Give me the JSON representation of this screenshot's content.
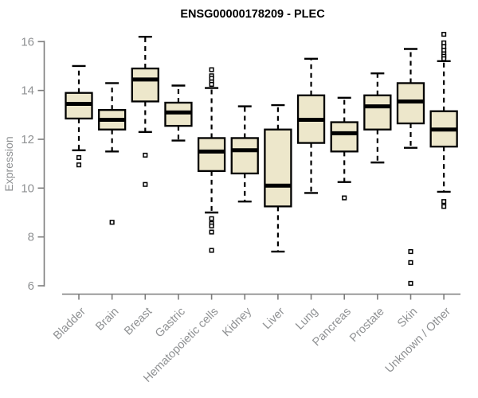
{
  "chart_data": {
    "type": "boxplot",
    "title": "ENSG00000178209 - PLEC",
    "xlabel": "",
    "ylabel": "Expression",
    "ylim": [
      6,
      16.4
    ],
    "yticks": [
      6,
      8,
      10,
      12,
      14,
      16
    ],
    "grid": false,
    "legend_position": "none",
    "categories": [
      "Bladder",
      "Brain",
      "Breast",
      "Gastric",
      "Hematopoietic cells",
      "Kidney",
      "Liver",
      "Lung",
      "Pancreas",
      "Prostate",
      "Skin",
      "Unknown / Other"
    ],
    "series": [
      {
        "name": "Bladder",
        "whislo": 11.55,
        "q1": 12.85,
        "med": 13.45,
        "q3": 13.9,
        "whishi": 15.0,
        "outliers": [
          11.25,
          10.95
        ]
      },
      {
        "name": "Brain",
        "whislo": 11.5,
        "q1": 12.4,
        "med": 12.8,
        "q3": 13.2,
        "whishi": 14.3,
        "outliers": [
          8.6
        ]
      },
      {
        "name": "Breast",
        "whislo": 12.3,
        "q1": 13.55,
        "med": 14.45,
        "q3": 14.9,
        "whishi": 16.2,
        "outliers": [
          11.35,
          10.15
        ]
      },
      {
        "name": "Gastric",
        "whislo": 11.95,
        "q1": 12.55,
        "med": 13.1,
        "q3": 13.5,
        "whishi": 14.2,
        "outliers": []
      },
      {
        "name": "Hematopoietic cells",
        "whislo": 9.0,
        "q1": 10.7,
        "med": 11.5,
        "q3": 12.05,
        "whishi": 14.1,
        "outliers": [
          14.85,
          14.6,
          14.5,
          14.35,
          14.25,
          8.75,
          8.55,
          8.45,
          8.2,
          7.45
        ]
      },
      {
        "name": "Kidney",
        "whislo": 9.45,
        "q1": 10.6,
        "med": 11.55,
        "q3": 12.05,
        "whishi": 13.35,
        "outliers": []
      },
      {
        "name": "Liver",
        "whislo": 7.4,
        "q1": 9.25,
        "med": 10.1,
        "q3": 12.4,
        "whishi": 13.4,
        "outliers": []
      },
      {
        "name": "Lung",
        "whislo": 9.8,
        "q1": 11.85,
        "med": 12.8,
        "q3": 13.8,
        "whishi": 15.3,
        "outliers": []
      },
      {
        "name": "Pancreas",
        "whislo": 10.25,
        "q1": 11.5,
        "med": 12.25,
        "q3": 12.7,
        "whishi": 13.7,
        "outliers": [
          9.6
        ]
      },
      {
        "name": "Prostate",
        "whislo": 11.05,
        "q1": 12.4,
        "med": 13.35,
        "q3": 13.8,
        "whishi": 14.7,
        "outliers": []
      },
      {
        "name": "Skin",
        "whislo": 11.65,
        "q1": 12.65,
        "med": 13.55,
        "q3": 14.3,
        "whishi": 15.7,
        "outliers": [
          7.4,
          6.95,
          6.1
        ]
      },
      {
        "name": "Unknown / Other",
        "whislo": 9.85,
        "q1": 11.7,
        "med": 12.4,
        "q3": 13.15,
        "whishi": 15.2,
        "outliers": [
          16.3,
          15.95,
          15.8,
          15.65,
          15.5,
          15.4,
          15.3,
          9.45,
          9.25
        ]
      }
    ],
    "colors": {
      "box_fill": "#EDE7CB",
      "box_stroke": "#000000",
      "median_color": "#000000",
      "whisker_color": "#000000",
      "outlier_color": "#000000",
      "axis_color": "#7D7D7D",
      "tick_label_color": "#8F9193",
      "title_color": "#000000",
      "background": "#FFFFFF"
    }
  }
}
